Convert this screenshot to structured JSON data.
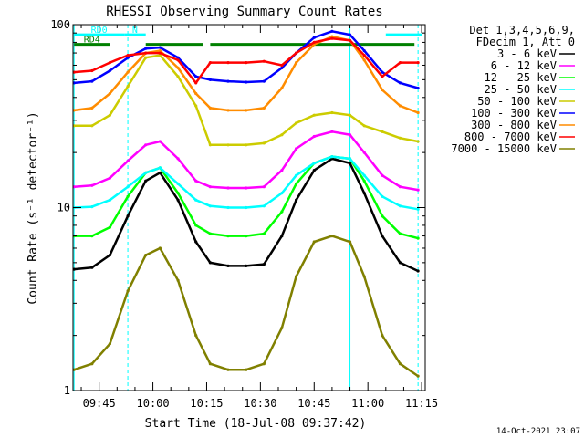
{
  "chart_data": {
    "type": "line",
    "title": "RHESSI Observing Summary Count Rates",
    "xlabel": "Start Time (18-Jul-08 09:37:42)",
    "ylabel": "Count Rate (s⁻¹ detector⁻¹)",
    "y_scale": "log",
    "ylim": [
      1,
      100
    ],
    "xlim": [
      "09:37:42",
      "11:16:00"
    ],
    "x_ticks": [
      "09:45",
      "10:00",
      "10:15",
      "10:30",
      "10:45",
      "11:00",
      "11:15"
    ],
    "y_ticks": [
      "1",
      "10",
      "100"
    ],
    "grid": false,
    "legend_position": "right",
    "legend_header": [
      "Det 1,3,4,5,6,9,",
      "FDecim 1, Att 0"
    ],
    "x": [
      "09:38",
      "09:43",
      "09:48",
      "09:53",
      "09:58",
      "10:02",
      "10:07",
      "10:12",
      "10:16",
      "10:21",
      "10:26",
      "10:31",
      "10:36",
      "10:40",
      "10:45",
      "10:50",
      "10:55",
      "10:59",
      "11:04",
      "11:09",
      "11:14"
    ],
    "series": [
      {
        "name": "3 - 6 keV",
        "color": "#000000",
        "values": [
          4.6,
          4.7,
          5.5,
          9.0,
          14.0,
          15.5,
          11.0,
          6.5,
          5.0,
          4.8,
          4.8,
          4.9,
          7.0,
          11.0,
          16.0,
          18.5,
          17.5,
          12.0,
          7.0,
          5.0,
          4.5
        ]
      },
      {
        "name": "6 - 12 keV",
        "color": "#ff00ff",
        "values": [
          13.0,
          13.2,
          14.5,
          18.0,
          22.0,
          23.0,
          18.5,
          14.0,
          13.0,
          12.8,
          12.8,
          13.0,
          16.0,
          21.0,
          24.5,
          26.0,
          25.0,
          20.0,
          15.0,
          13.0,
          12.5
        ]
      },
      {
        "name": "12 - 25 keV",
        "color": "#00ff00",
        "values": [
          7.0,
          7.0,
          7.8,
          11.5,
          15.5,
          16.5,
          12.0,
          8.0,
          7.2,
          7.0,
          7.0,
          7.2,
          9.5,
          13.5,
          17.5,
          19.0,
          18.5,
          14.0,
          9.0,
          7.2,
          6.8
        ]
      },
      {
        "name": "25 - 50 keV",
        "color": "#00ffff",
        "values": [
          10.0,
          10.1,
          11.0,
          13.0,
          15.5,
          16.5,
          13.5,
          11.0,
          10.2,
          10.0,
          10.0,
          10.2,
          12.0,
          15.0,
          17.5,
          19.0,
          18.5,
          15.0,
          11.5,
          10.2,
          9.8
        ]
      },
      {
        "name": "50 - 100 keV",
        "color": "#cccc00",
        "values": [
          28.0,
          28.0,
          32.0,
          46.0,
          66.0,
          68.0,
          52.0,
          36.0,
          22.0,
          22.0,
          22.0,
          22.5,
          25.0,
          29.0,
          32.0,
          33.0,
          32.0,
          28.0,
          26.0,
          24.0,
          23.0
        ]
      },
      {
        "name": "100 - 300 keV",
        "color": "#0000ff",
        "values": [
          48.0,
          49.0,
          56.0,
          66.0,
          74.0,
          75.0,
          66.0,
          52.0,
          50.0,
          49.0,
          48.5,
          49.0,
          58.0,
          70.0,
          85.0,
          92.0,
          88.0,
          72.0,
          55.0,
          48.0,
          45.0
        ]
      },
      {
        "name": "300 - 800 keV",
        "color": "#ff8c00",
        "values": [
          34.0,
          35.0,
          42.0,
          55.0,
          70.0,
          72.0,
          58.0,
          42.0,
          35.0,
          34.0,
          34.0,
          35.0,
          45.0,
          62.0,
          78.0,
          86.0,
          82.0,
          64.0,
          44.0,
          36.0,
          33.0
        ]
      },
      {
        "name": "800 - 7000 keV",
        "color": "#ff0000",
        "values": [
          55.0,
          56.0,
          62.0,
          68.0,
          70.0,
          70.0,
          64.0,
          48.0,
          62.0,
          62.0,
          62.0,
          63.0,
          60.0,
          70.0,
          80.0,
          84.0,
          82.0,
          68.0,
          52.0,
          62.0,
          62.0
        ]
      },
      {
        "name": "7000 - 15000 keV",
        "color": "#808000",
        "values": [
          1.3,
          1.4,
          1.8,
          3.5,
          5.5,
          6.0,
          4.0,
          2.0,
          1.4,
          1.3,
          1.3,
          1.4,
          2.2,
          4.2,
          6.5,
          7.0,
          6.5,
          4.2,
          2.0,
          1.4,
          1.2
        ]
      }
    ],
    "flags": [
      {
        "label": "RD0",
        "color": "#00ffff",
        "start": "09:38",
        "end": "09:52",
        "level": 88
      },
      {
        "label": "N",
        "color": "#00ffff",
        "start": "09:52",
        "end": "09:58",
        "level": 88
      },
      {
        "label": "",
        "color": "#00ffff",
        "start": "11:05",
        "end": "11:15",
        "level": 88
      },
      {
        "label": "RD4",
        "color": "#008000",
        "start": "09:38",
        "end": "09:48",
        "level": 78
      },
      {
        "label": "",
        "color": "#008000",
        "start": "09:58",
        "end": "10:14",
        "level": 78
      },
      {
        "label": "",
        "color": "#008000",
        "start": "10:16",
        "end": "11:13",
        "level": 78
      }
    ],
    "vertical_markers": [
      {
        "time": "09:38",
        "color": "#00ffff",
        "style": "solid"
      },
      {
        "time": "09:53",
        "color": "#00ffff",
        "style": "dashed"
      },
      {
        "time": "10:55",
        "color": "#00ffff",
        "style": "solid"
      },
      {
        "time": "11:14",
        "color": "#00ffff",
        "style": "dashed"
      }
    ]
  },
  "footer": {
    "timestamp": "14-Oct-2021 23:07"
  }
}
